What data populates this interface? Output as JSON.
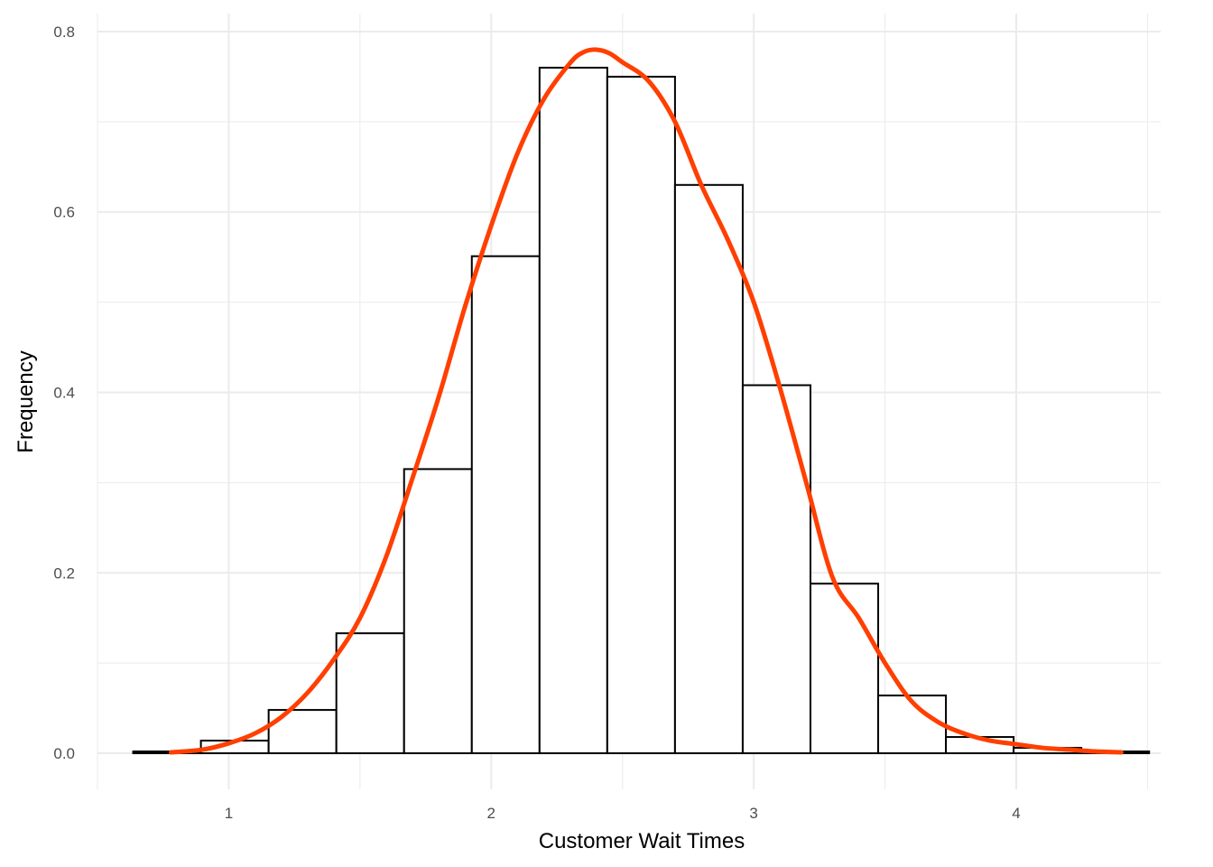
{
  "chart_data": {
    "type": "bar",
    "subtype": "histogram-with-density",
    "title": "",
    "xlabel": "Customer Wait Times",
    "ylabel": "Frequency",
    "xlim": [
      0.5,
      4.55
    ],
    "ylim": [
      -0.04,
      0.82
    ],
    "x_ticks": [
      1,
      2,
      3,
      4
    ],
    "y_ticks": [
      0.0,
      0.2,
      0.4,
      0.6,
      0.8
    ],
    "x_tick_labels": [
      "1",
      "2",
      "3",
      "4"
    ],
    "y_tick_labels": [
      "0.0",
      "0.2",
      "0.4",
      "0.6",
      "0.8"
    ],
    "grid": true,
    "bin_edges": [
      0.636,
      0.894,
      1.152,
      1.41,
      1.668,
      1.926,
      2.184,
      2.442,
      2.7,
      2.958,
      3.216,
      3.474,
      3.732,
      3.99,
      4.248,
      4.506
    ],
    "bins": [
      {
        "x0": 0.636,
        "x1": 0.894,
        "value": 0.002
      },
      {
        "x0": 0.894,
        "x1": 1.152,
        "value": 0.014
      },
      {
        "x0": 1.152,
        "x1": 1.41,
        "value": 0.048
      },
      {
        "x0": 1.41,
        "x1": 1.668,
        "value": 0.133
      },
      {
        "x0": 1.668,
        "x1": 1.926,
        "value": 0.315
      },
      {
        "x0": 1.926,
        "x1": 2.184,
        "value": 0.551
      },
      {
        "x0": 2.184,
        "x1": 2.442,
        "value": 0.76
      },
      {
        "x0": 2.442,
        "x1": 2.7,
        "value": 0.75
      },
      {
        "x0": 2.7,
        "x1": 2.958,
        "value": 0.63
      },
      {
        "x0": 2.958,
        "x1": 3.216,
        "value": 0.408
      },
      {
        "x0": 3.216,
        "x1": 3.474,
        "value": 0.188
      },
      {
        "x0": 3.474,
        "x1": 3.732,
        "value": 0.064
      },
      {
        "x0": 3.732,
        "x1": 3.99,
        "value": 0.018
      },
      {
        "x0": 3.99,
        "x1": 4.248,
        "value": 0.006
      },
      {
        "x0": 4.248,
        "x1": 4.506,
        "value": 0.002
      }
    ],
    "density_color": "#ff3f00",
    "density": {
      "x": [
        0.78,
        0.9,
        1.0,
        1.1,
        1.2,
        1.3,
        1.4,
        1.5,
        1.6,
        1.7,
        1.8,
        1.9,
        2.0,
        2.1,
        2.2,
        2.3,
        2.35,
        2.4,
        2.45,
        2.5,
        2.6,
        2.7,
        2.8,
        2.9,
        3.0,
        3.1,
        3.2,
        3.3,
        3.4,
        3.5,
        3.6,
        3.7,
        3.8,
        3.9,
        4.0,
        4.1,
        4.2,
        4.3,
        4.4
      ],
      "y": [
        0.001,
        0.004,
        0.011,
        0.022,
        0.04,
        0.067,
        0.104,
        0.15,
        0.218,
        0.305,
        0.395,
        0.495,
        0.585,
        0.665,
        0.725,
        0.765,
        0.777,
        0.78,
        0.776,
        0.766,
        0.745,
        0.7,
        0.63,
        0.57,
        0.5,
        0.405,
        0.3,
        0.195,
        0.15,
        0.1,
        0.058,
        0.035,
        0.022,
        0.014,
        0.01,
        0.006,
        0.004,
        0.002,
        0.001
      ]
    }
  }
}
